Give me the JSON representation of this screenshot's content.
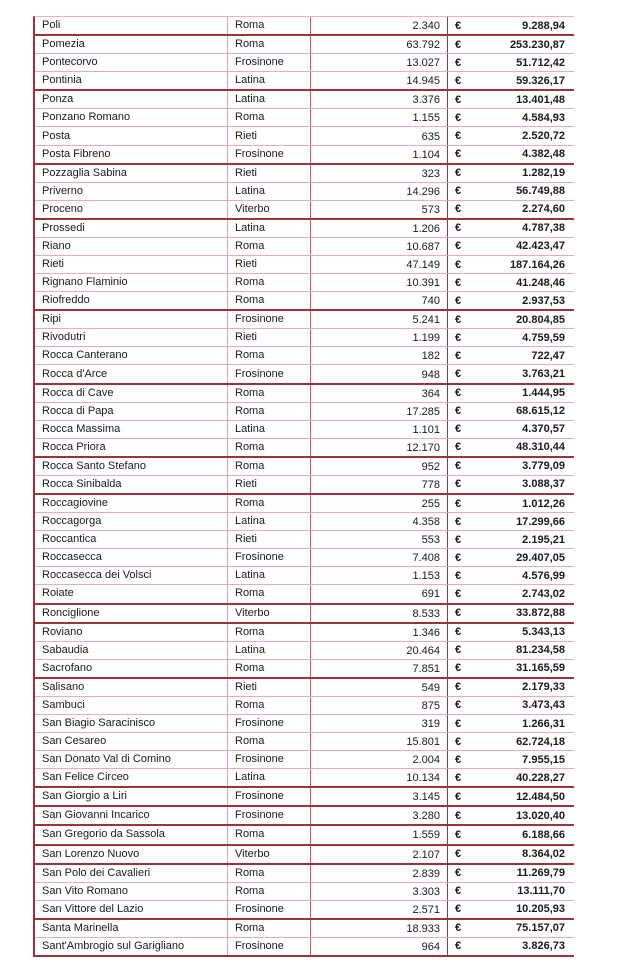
{
  "table": {
    "currency_symbol": "€",
    "columns": [
      "name",
      "province",
      "population",
      "amount"
    ],
    "rows": [
      {
        "name": "Poli",
        "province": "Roma",
        "population": "2.340",
        "amount": "9.288,94"
      },
      {
        "name": "Pomezia",
        "province": "Roma",
        "population": "63.792",
        "amount": "253.230,87"
      },
      {
        "name": "Pontecorvo",
        "province": "Frosinone",
        "population": "13.027",
        "amount": "51.712,42"
      },
      {
        "name": "Pontinia",
        "province": "Latina",
        "population": "14.945",
        "amount": "59.326,17"
      },
      {
        "name": "Ponza",
        "province": "Latina",
        "population": "3.376",
        "amount": "13.401,48"
      },
      {
        "name": "Ponzano Romano",
        "province": "Roma",
        "population": "1.155",
        "amount": "4.584,93"
      },
      {
        "name": "Posta",
        "province": "Rieti",
        "population": "635",
        "amount": "2.520,72"
      },
      {
        "name": "Posta Fibreno",
        "province": "Frosinone",
        "population": "1.104",
        "amount": "4.382,48"
      },
      {
        "name": "Pozzaglia Sabina",
        "province": "Rieti",
        "population": "323",
        "amount": "1.282,19"
      },
      {
        "name": "Priverno",
        "province": "Latina",
        "population": "14.296",
        "amount": "56.749,88"
      },
      {
        "name": "Proceno",
        "province": "Viterbo",
        "population": "573",
        "amount": "2.274,60"
      },
      {
        "name": "Prossedi",
        "province": "Latina",
        "population": "1.206",
        "amount": "4.787,38"
      },
      {
        "name": "Riano",
        "province": "Roma",
        "population": "10.687",
        "amount": "42.423,47"
      },
      {
        "name": "Rieti",
        "province": "Rieti",
        "population": "47.149",
        "amount": "187.164,26"
      },
      {
        "name": "Rignano Flaminio",
        "province": "Roma",
        "population": "10.391",
        "amount": "41.248,46"
      },
      {
        "name": "Riofreddo",
        "province": "Roma",
        "population": "740",
        "amount": "2.937,53"
      },
      {
        "name": "Ripi",
        "province": "Frosinone",
        "population": "5.241",
        "amount": "20.804,85"
      },
      {
        "name": "Rivodutri",
        "province": "Rieti",
        "population": "1.199",
        "amount": "4.759,59"
      },
      {
        "name": "Rocca Canterano",
        "province": "Roma",
        "population": "182",
        "amount": "722,47"
      },
      {
        "name": "Rocca d'Arce",
        "province": "Frosinone",
        "population": "948",
        "amount": "3.763,21"
      },
      {
        "name": "Rocca di Cave",
        "province": "Roma",
        "population": "364",
        "amount": "1.444,95"
      },
      {
        "name": "Rocca di Papa",
        "province": "Roma",
        "population": "17.285",
        "amount": "68.615,12"
      },
      {
        "name": "Rocca Massima",
        "province": "Latina",
        "population": "1.101",
        "amount": "4.370,57"
      },
      {
        "name": "Rocca Priora",
        "province": "Roma",
        "population": "12.170",
        "amount": "48.310,44"
      },
      {
        "name": "Rocca Santo Stefano",
        "province": "Roma",
        "population": "952",
        "amount": "3.779,09"
      },
      {
        "name": "Rocca Sinibalda",
        "province": "Rieti",
        "population": "778",
        "amount": "3.088,37"
      },
      {
        "name": "Roccagiovine",
        "province": "Roma",
        "population": "255",
        "amount": "1.012,26"
      },
      {
        "name": "Roccagorga",
        "province": "Latina",
        "population": "4.358",
        "amount": "17.299,66"
      },
      {
        "name": "Roccantica",
        "province": "Rieti",
        "population": "553",
        "amount": "2.195,21"
      },
      {
        "name": "Roccasecca",
        "province": "Frosinone",
        "population": "7.408",
        "amount": "29.407,05"
      },
      {
        "name": "Roccasecca dei Volsci",
        "province": "Latina",
        "population": "1.153",
        "amount": "4.576,99"
      },
      {
        "name": "Roiate",
        "province": "Roma",
        "population": "691",
        "amount": "2.743,02"
      },
      {
        "name": "Ronciglione",
        "province": "Viterbo",
        "population": "8.533",
        "amount": "33.872,88"
      },
      {
        "name": "Roviano",
        "province": "Roma",
        "population": "1.346",
        "amount": "5.343,13"
      },
      {
        "name": "Sabaudia",
        "province": "Latina",
        "population": "20.464",
        "amount": "81.234,58"
      },
      {
        "name": "Sacrofano",
        "province": "Roma",
        "population": "7.851",
        "amount": "31.165,59"
      },
      {
        "name": "Salisano",
        "province": "Rieti",
        "population": "549",
        "amount": "2.179,33"
      },
      {
        "name": "Sambuci",
        "province": "Roma",
        "population": "875",
        "amount": "3.473,43"
      },
      {
        "name": "San Biagio Saracinisco",
        "province": "Frosinone",
        "population": "319",
        "amount": "1.266,31"
      },
      {
        "name": "San Cesareo",
        "province": "Roma",
        "population": "15.801",
        "amount": "62.724,18"
      },
      {
        "name": "San Donato Val di Comino",
        "province": "Frosinone",
        "population": "2.004",
        "amount": "7.955,15"
      },
      {
        "name": "San Felice Circeo",
        "province": "Latina",
        "population": "10.134",
        "amount": "40.228,27"
      },
      {
        "name": "San Giorgio a Liri",
        "province": "Frosinone",
        "population": "3.145",
        "amount": "12.484,50"
      },
      {
        "name": "San Giovanni Incarico",
        "province": "Frosinone",
        "population": "3.280",
        "amount": "13.020,40"
      },
      {
        "name": "San Gregorio da Sassola",
        "province": "Roma",
        "population": "1.559",
        "amount": "6.188,66"
      },
      {
        "name": "San Lorenzo Nuovo",
        "province": "Viterbo",
        "population": "2.107",
        "amount": "8.364,02"
      },
      {
        "name": "San Polo dei Cavalieri",
        "province": "Roma",
        "population": "2.839",
        "amount": "11.269,79"
      },
      {
        "name": "San Vito Romano",
        "province": "Roma",
        "population": "3.303",
        "amount": "13.111,70"
      },
      {
        "name": "San Vittore del Lazio",
        "province": "Frosinone",
        "population": "2.571",
        "amount": "10.205,93"
      },
      {
        "name": "Santa Marinella",
        "province": "Roma",
        "population": "18.933",
        "amount": "75.157,07"
      },
      {
        "name": "Sant'Ambrogio sul Garigliano",
        "province": "Frosinone",
        "population": "964",
        "amount": "3.826,73"
      }
    ],
    "thick_border_after_rows": [
      1,
      4,
      8,
      11,
      16,
      20,
      24,
      26,
      32,
      33,
      36,
      42,
      43,
      44,
      45,
      46,
      49,
      51
    ]
  },
  "colors": {
    "border_dark": "#9c323a",
    "border_light": "#eaabb1",
    "border_mid": "#c25b63",
    "text": "#1a1a1a",
    "background": "#ffffff"
  }
}
